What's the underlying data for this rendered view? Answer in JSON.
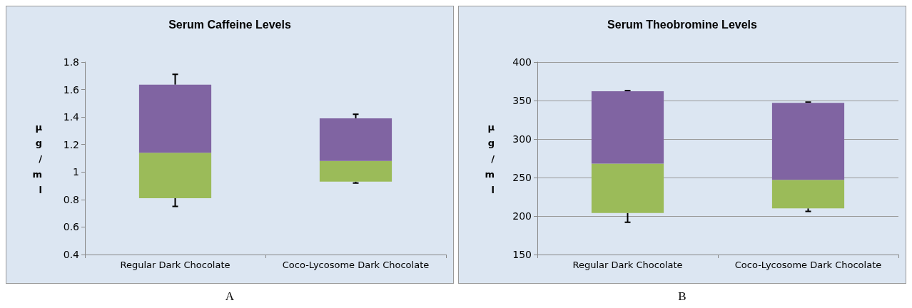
{
  "chart_data": [
    {
      "type": "box",
      "title": "Serum Caffeine Levels",
      "ylabel": "µg/ml",
      "categories": [
        "Regular Dark Chocolate",
        "Coco-Lycosome Dark Chocolate"
      ],
      "boxes": [
        {
          "low": 0.75,
          "q1": 0.81,
          "median": 1.14,
          "q3": 1.635,
          "high": 1.71
        },
        {
          "low": 0.92,
          "q1": 0.93,
          "median": 1.08,
          "q3": 1.39,
          "high": 1.42
        }
      ],
      "ylim": [
        0.4,
        1.8
      ],
      "yticks": [
        0.4,
        0.6,
        0.8,
        1,
        1.2,
        1.4,
        1.6,
        1.8
      ],
      "grid": false,
      "annotations": [
        "A"
      ]
    },
    {
      "type": "box",
      "title": "Serum Theobromine Levels",
      "ylabel": "µg/ml",
      "categories": [
        "Regular Dark Chocolate",
        "Coco-Lycosome Dark Chocolate"
      ],
      "boxes": [
        {
          "low": 192,
          "q1": 204,
          "median": 268,
          "q3": 362,
          "high": 363
        },
        {
          "low": 206,
          "q1": 210,
          "median": 247,
          "q3": 347,
          "high": 348
        }
      ],
      "ylim": [
        150,
        400
      ],
      "yticks": [
        150,
        200,
        250,
        300,
        350,
        400
      ],
      "grid": "y",
      "annotations": [
        "B"
      ]
    }
  ]
}
